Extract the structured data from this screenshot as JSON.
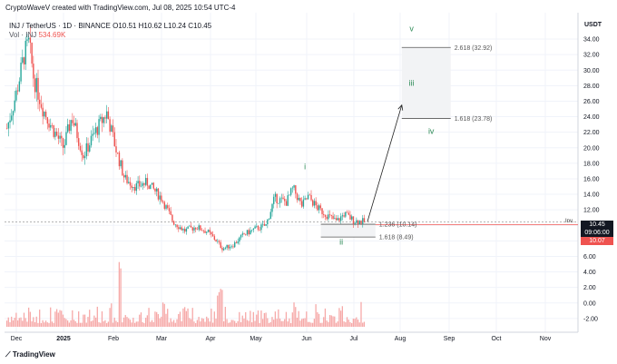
{
  "header": {
    "author_line": "CryptoWaveV created with TradingView.com, Jul 08, 2025 10:54 UTC-4",
    "symbol": "INJ / TetherUS · 1D · BINANCE",
    "ohlc": "O10.51  H10.62  L10.24  C10.45",
    "volume_label": "Vol · INJ",
    "volume_value": "534.69K"
  },
  "axis": {
    "currency": "USDT",
    "price_ticks": [
      "34.00",
      "32.00",
      "30.00",
      "28.00",
      "26.00",
      "24.00",
      "22.00",
      "20.00",
      "18.00",
      "16.00",
      "14.00",
      "12.00",
      "10.00",
      "8.00",
      "6.00",
      "4.00",
      "2.00",
      "0.00",
      "-2.00"
    ],
    "time_ticks": [
      "Dec",
      "2025",
      "Feb",
      "Mar",
      "Apr",
      "May",
      "Jun",
      "Jul",
      "Aug",
      "Sep",
      "Oct",
      "Nov"
    ]
  },
  "tags": {
    "last_price": "10.45",
    "countdown": "09:06:00",
    "level_price": "10.07",
    "inv_label": "Inv."
  },
  "levels": {
    "top_zone": [
      "2.618 (32.92)",
      "1.618 (23.78)"
    ],
    "bottom_zone": [
      "1.236 (10.14)",
      "1.618 (8.49)"
    ]
  },
  "wave_labels": [
    "v",
    "iii",
    "iv",
    "i",
    "ii"
  ],
  "logo": "TradingView",
  "colors": {
    "up": "#26a69a",
    "down": "#ef5350",
    "wave": "#2e8b57",
    "volume": "#f6a9a8"
  },
  "chart_data": {
    "type": "candlestick",
    "symbol": "INJ/USDT",
    "timeframe": "1D",
    "x_axis": [
      "Dec",
      "2025",
      "Feb",
      "Mar",
      "Apr",
      "May",
      "Jun",
      "Jul",
      "Aug",
      "Sep",
      "Oct",
      "Nov"
    ],
    "ylim": [
      -3,
      36
    ],
    "close_path": [
      {
        "date": "Nov 25",
        "close": 22.5
      },
      {
        "date": "Dec 01",
        "close": 27.0
      },
      {
        "date": "Dec 06",
        "close": 32.0
      },
      {
        "date": "Dec 09",
        "close": 33.5
      },
      {
        "date": "Dec 12",
        "close": 29.0
      },
      {
        "date": "Dec 18",
        "close": 25.0
      },
      {
        "date": "Dec 24",
        "close": 22.5
      },
      {
        "date": "Dec 31",
        "close": 20.0
      },
      {
        "date": "Jan 06",
        "close": 24.0
      },
      {
        "date": "Jan 13",
        "close": 19.0
      },
      {
        "date": "Jan 20",
        "close": 22.0
      },
      {
        "date": "Jan 27",
        "close": 24.5
      },
      {
        "date": "Feb 03",
        "close": 19.5
      },
      {
        "date": "Feb 08",
        "close": 16.0
      },
      {
        "date": "Feb 15",
        "close": 15.0
      },
      {
        "date": "Feb 22",
        "close": 15.5
      },
      {
        "date": "Mar 01",
        "close": 13.5
      },
      {
        "date": "Mar 08",
        "close": 10.5
      },
      {
        "date": "Mar 15",
        "close": 9.3
      },
      {
        "date": "Mar 22",
        "close": 9.8
      },
      {
        "date": "Mar 29",
        "close": 9.2
      },
      {
        "date": "Apr 05",
        "close": 8.0
      },
      {
        "date": "Apr 09",
        "close": 7.0
      },
      {
        "date": "Apr 16",
        "close": 7.5
      },
      {
        "date": "Apr 23",
        "close": 8.8
      },
      {
        "date": "Apr 30",
        "close": 9.5
      },
      {
        "date": "May 07",
        "close": 10.0
      },
      {
        "date": "May 12",
        "close": 13.5
      },
      {
        "date": "May 19",
        "close": 13.0
      },
      {
        "date": "May 23",
        "close": 14.8
      },
      {
        "date": "May 28",
        "close": 12.5
      },
      {
        "date": "Jun 02",
        "close": 13.7
      },
      {
        "date": "Jun 08",
        "close": 12.2
      },
      {
        "date": "Jun 14",
        "close": 11.3
      },
      {
        "date": "Jun 20",
        "close": 10.5
      },
      {
        "date": "Jun 25",
        "close": 11.5
      },
      {
        "date": "Jul 01",
        "close": 10.6
      },
      {
        "date": "Jul 08",
        "close": 10.45
      }
    ],
    "projection": {
      "from": {
        "date": "Jul 08",
        "value": 10.45
      },
      "to": {
        "date": "Aug 02",
        "value": 25.5
      }
    },
    "zones": [
      {
        "top": 32.92,
        "bottom": 23.78,
        "from": "Aug 02",
        "to": "Sep 02"
      },
      {
        "top": 10.14,
        "bottom": 8.49,
        "from": "Jun 10",
        "to": "Jul 15"
      }
    ],
    "wave_points": [
      {
        "label": "i",
        "date": "May 30",
        "value": 17.2
      },
      {
        "label": "ii",
        "date": "Jun 23",
        "value": 7.5
      },
      {
        "label": "iii",
        "date": "Aug 08",
        "value": 28.0
      },
      {
        "label": "iv",
        "date": "Aug 20",
        "value": 21.8
      },
      {
        "label": "v",
        "date": "Aug 08",
        "value": 35.0
      }
    ],
    "current_price": 10.45,
    "reference_price": 10.07
  }
}
